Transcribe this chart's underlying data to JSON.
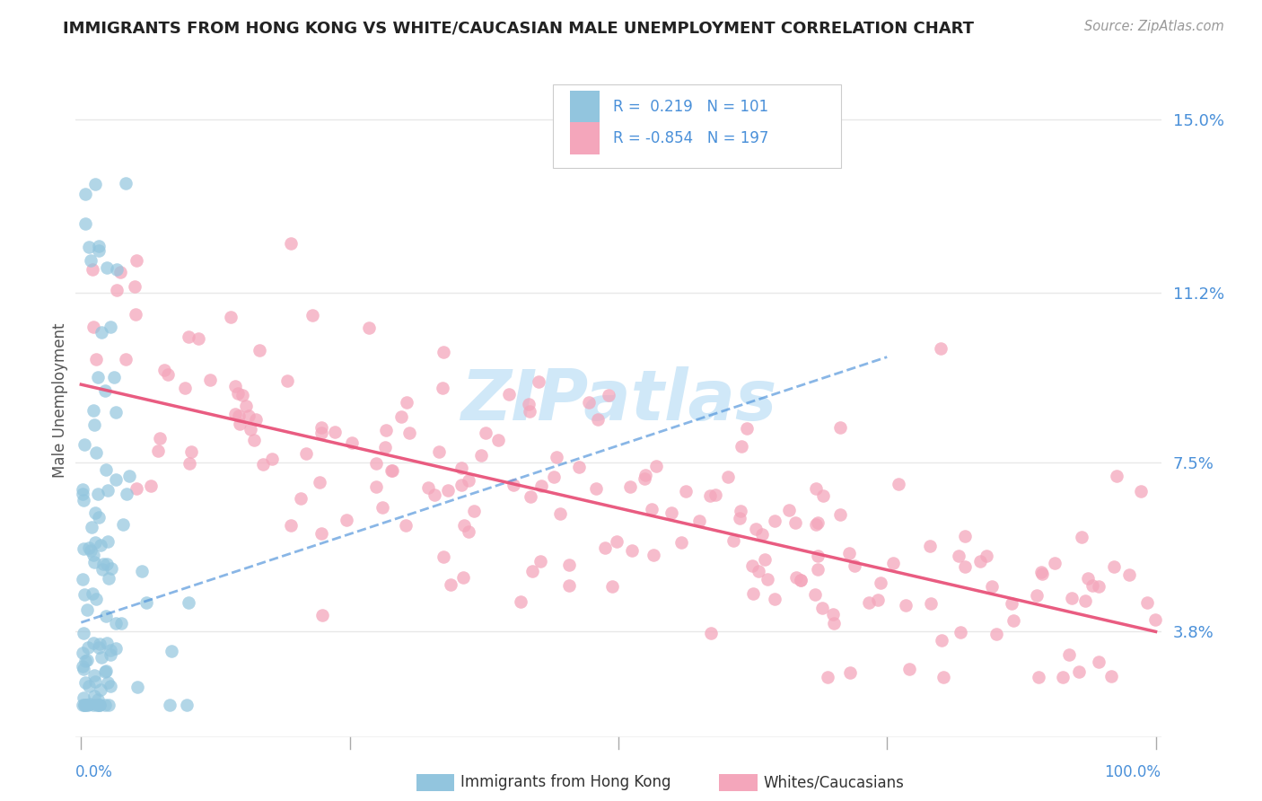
{
  "title": "IMMIGRANTS FROM HONG KONG VS WHITE/CAUCASIAN MALE UNEMPLOYMENT CORRELATION CHART",
  "source": "Source: ZipAtlas.com",
  "ylabel": "Male Unemployment",
  "y_tick_labels": [
    "3.8%",
    "7.5%",
    "11.2%",
    "15.0%"
  ],
  "y_tick_values": [
    0.038,
    0.075,
    0.112,
    0.15
  ],
  "legend_blue_label": "Immigrants from Hong Kong",
  "legend_pink_label": "Whites/Caucasians",
  "blue_color": "#92c5de",
  "pink_color": "#f4a6bb",
  "blue_line_color": "#4a90d9",
  "pink_line_color": "#e8537a",
  "title_color": "#222222",
  "source_color": "#999999",
  "axis_label_color": "#4a90d9",
  "watermark_color": "#d0e8f8",
  "background_color": "#ffffff",
  "grid_color": "#e8e8e8",
  "ylim": [
    0.015,
    0.162
  ],
  "xlim": [
    -0.005,
    1.005
  ],
  "blue_trend_x0": 0.0,
  "blue_trend_x1": 0.75,
  "blue_trend_y0": 0.04,
  "blue_trend_y1": 0.098,
  "pink_trend_x0": 0.0,
  "pink_trend_x1": 1.0,
  "pink_trend_y0": 0.092,
  "pink_trend_y1": 0.038
}
